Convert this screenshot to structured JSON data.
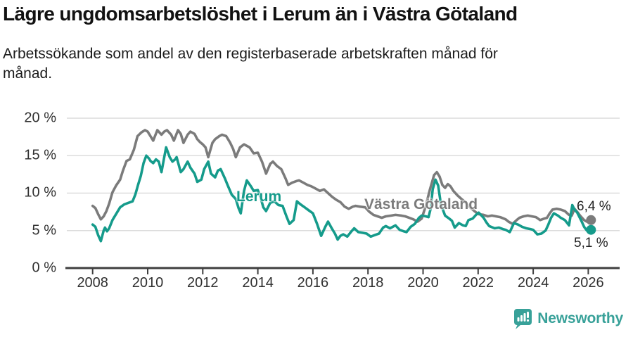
{
  "colors": {
    "teal": "#159b8b",
    "gray": "#7b7b7b",
    "axis": "#3f3f3f",
    "grid": "#dcdcdc",
    "logo": "#38a199"
  },
  "footer": {
    "brand": "Newsworthy"
  },
  "chart_data": {
    "type": "line",
    "title": "Lägre ungdomsarbetslöshet i Lerum än i Västra Götaland",
    "subtitle_lines": [
      "Arbetssökande som andel av den registerbaserade arbetskraften månad för",
      "månad."
    ],
    "unit": "%",
    "legend_position": "inline-labels-on-lines",
    "x_axis": {
      "tick_labels": [
        "2008",
        "2010",
        "2012",
        "2014",
        "2016",
        "2018",
        "2020",
        "2022",
        "2024",
        "2026"
      ],
      "tick_years": [
        2008,
        2010,
        2012,
        2014,
        2016,
        2018,
        2020,
        2022,
        2024,
        2026
      ],
      "range": [
        2007.8,
        2027.1
      ],
      "grid": false
    },
    "y_axis": {
      "tick_labels": [
        "0 %",
        "5 %",
        "10 %",
        "15 %",
        "20 %"
      ],
      "tick_values": [
        0,
        5,
        10,
        15,
        20
      ],
      "range": [
        0,
        20
      ],
      "grid": true
    },
    "series": [
      {
        "name": "Västra Götaland",
        "color_key": "gray",
        "end_label": "6,4 %",
        "end_value": 6.4,
        "points": [
          [
            2008.0,
            8.3
          ],
          [
            2008.1,
            8.0
          ],
          [
            2008.2,
            7.2
          ],
          [
            2008.3,
            6.5
          ],
          [
            2008.4,
            6.9
          ],
          [
            2008.5,
            7.6
          ],
          [
            2008.6,
            8.6
          ],
          [
            2008.72,
            10.1
          ],
          [
            2008.85,
            11.0
          ],
          [
            2009.0,
            11.8
          ],
          [
            2009.1,
            13.0
          ],
          [
            2009.23,
            14.3
          ],
          [
            2009.35,
            14.5
          ],
          [
            2009.5,
            15.8
          ],
          [
            2009.63,
            17.6
          ],
          [
            2009.77,
            18.1
          ],
          [
            2009.9,
            18.4
          ],
          [
            2010.0,
            18.2
          ],
          [
            2010.1,
            17.6
          ],
          [
            2010.2,
            17.0
          ],
          [
            2010.35,
            18.4
          ],
          [
            2010.5,
            17.8
          ],
          [
            2010.6,
            18.2
          ],
          [
            2010.7,
            18.4
          ],
          [
            2010.85,
            17.8
          ],
          [
            2010.95,
            17.0
          ],
          [
            2011.1,
            18.4
          ],
          [
            2011.2,
            17.9
          ],
          [
            2011.3,
            16.7
          ],
          [
            2011.45,
            17.8
          ],
          [
            2011.55,
            18.2
          ],
          [
            2011.7,
            17.9
          ],
          [
            2011.8,
            17.2
          ],
          [
            2011.9,
            16.8
          ],
          [
            2012.0,
            16.5
          ],
          [
            2012.1,
            16.1
          ],
          [
            2012.2,
            14.8
          ],
          [
            2012.35,
            16.7
          ],
          [
            2012.45,
            17.2
          ],
          [
            2012.6,
            17.6
          ],
          [
            2012.7,
            17.8
          ],
          [
            2012.85,
            17.6
          ],
          [
            2013.0,
            16.7
          ],
          [
            2013.1,
            15.9
          ],
          [
            2013.2,
            14.8
          ],
          [
            2013.35,
            16.1
          ],
          [
            2013.5,
            16.5
          ],
          [
            2013.7,
            16.1
          ],
          [
            2013.85,
            15.3
          ],
          [
            2014.0,
            15.4
          ],
          [
            2014.15,
            14.2
          ],
          [
            2014.3,
            12.6
          ],
          [
            2014.45,
            13.9
          ],
          [
            2014.55,
            14.2
          ],
          [
            2014.7,
            13.6
          ],
          [
            2014.85,
            13.2
          ],
          [
            2015.0,
            12.0
          ],
          [
            2015.1,
            11.1
          ],
          [
            2015.25,
            11.4
          ],
          [
            2015.4,
            11.6
          ],
          [
            2015.5,
            11.7
          ],
          [
            2015.65,
            11.4
          ],
          [
            2015.8,
            11.1
          ],
          [
            2015.95,
            10.9
          ],
          [
            2016.1,
            10.6
          ],
          [
            2016.25,
            10.3
          ],
          [
            2016.4,
            10.5
          ],
          [
            2016.55,
            10.0
          ],
          [
            2016.7,
            9.5
          ],
          [
            2016.85,
            9.1
          ],
          [
            2017.0,
            8.8
          ],
          [
            2017.15,
            8.2
          ],
          [
            2017.3,
            7.9
          ],
          [
            2017.45,
            8.2
          ],
          [
            2017.55,
            8.3
          ],
          [
            2017.7,
            8.2
          ],
          [
            2017.9,
            8.1
          ],
          [
            2018.05,
            7.5
          ],
          [
            2018.2,
            7.1
          ],
          [
            2018.35,
            6.9
          ],
          [
            2018.5,
            6.7
          ],
          [
            2018.65,
            6.9
          ],
          [
            2018.85,
            7.0
          ],
          [
            2019.0,
            7.1
          ],
          [
            2019.2,
            7.0
          ],
          [
            2019.35,
            6.9
          ],
          [
            2019.5,
            6.7
          ],
          [
            2019.65,
            6.5
          ],
          [
            2019.8,
            6.2
          ],
          [
            2019.95,
            6.6
          ],
          [
            2020.1,
            8.3
          ],
          [
            2020.25,
            10.5
          ],
          [
            2020.4,
            12.4
          ],
          [
            2020.5,
            12.8
          ],
          [
            2020.6,
            12.2
          ],
          [
            2020.7,
            11.1
          ],
          [
            2020.8,
            10.7
          ],
          [
            2020.9,
            11.2
          ],
          [
            2021.0,
            10.9
          ],
          [
            2021.1,
            10.3
          ],
          [
            2021.25,
            9.7
          ],
          [
            2021.4,
            9.2
          ],
          [
            2021.5,
            8.9
          ],
          [
            2021.65,
            8.3
          ],
          [
            2021.8,
            7.8
          ],
          [
            2022.0,
            7.2
          ],
          [
            2022.2,
            7.1
          ],
          [
            2022.35,
            6.9
          ],
          [
            2022.5,
            7.0
          ],
          [
            2022.65,
            6.9
          ],
          [
            2022.8,
            6.8
          ],
          [
            2023.0,
            6.5
          ],
          [
            2023.1,
            6.2
          ],
          [
            2023.25,
            5.9
          ],
          [
            2023.4,
            6.4
          ],
          [
            2023.5,
            6.7
          ],
          [
            2023.65,
            6.9
          ],
          [
            2023.8,
            7.0
          ],
          [
            2023.95,
            6.9
          ],
          [
            2024.1,
            6.8
          ],
          [
            2024.25,
            6.4
          ],
          [
            2024.4,
            6.6
          ],
          [
            2024.5,
            6.7
          ],
          [
            2024.6,
            7.3
          ],
          [
            2024.7,
            7.8
          ],
          [
            2024.85,
            7.9
          ],
          [
            2025.0,
            7.8
          ],
          [
            2025.15,
            7.6
          ],
          [
            2025.3,
            7.1
          ],
          [
            2025.4,
            7.0
          ],
          [
            2025.5,
            7.9
          ],
          [
            2025.6,
            7.5
          ],
          [
            2025.7,
            7.0
          ],
          [
            2025.85,
            6.4
          ],
          [
            2025.95,
            6.2
          ],
          [
            2026.1,
            6.4
          ]
        ]
      },
      {
        "name": "Lerum",
        "color_key": "teal",
        "end_label": "5,1 %",
        "end_value": 5.1,
        "points": [
          [
            2008.0,
            5.8
          ],
          [
            2008.1,
            5.5
          ],
          [
            2008.2,
            4.4
          ],
          [
            2008.3,
            3.6
          ],
          [
            2008.4,
            5.0
          ],
          [
            2008.45,
            5.4
          ],
          [
            2008.52,
            4.9
          ],
          [
            2008.6,
            5.3
          ],
          [
            2008.72,
            6.4
          ],
          [
            2008.85,
            7.2
          ],
          [
            2009.0,
            8.1
          ],
          [
            2009.15,
            8.5
          ],
          [
            2009.3,
            8.7
          ],
          [
            2009.45,
            8.9
          ],
          [
            2009.55,
            9.8
          ],
          [
            2009.65,
            11.1
          ],
          [
            2009.75,
            12.3
          ],
          [
            2009.85,
            14.0
          ],
          [
            2009.95,
            15.0
          ],
          [
            2010.05,
            14.6
          ],
          [
            2010.1,
            14.3
          ],
          [
            2010.2,
            14.0
          ],
          [
            2010.3,
            14.5
          ],
          [
            2010.4,
            14.2
          ],
          [
            2010.5,
            12.8
          ],
          [
            2010.6,
            14.8
          ],
          [
            2010.67,
            16.1
          ],
          [
            2010.8,
            14.8
          ],
          [
            2010.9,
            14.2
          ],
          [
            2011.0,
            14.5
          ],
          [
            2011.05,
            14.8
          ],
          [
            2011.2,
            12.8
          ],
          [
            2011.3,
            13.2
          ],
          [
            2011.45,
            14.2
          ],
          [
            2011.55,
            13.4
          ],
          [
            2011.7,
            12.6
          ],
          [
            2011.8,
            11.5
          ],
          [
            2011.95,
            11.8
          ],
          [
            2012.05,
            13.2
          ],
          [
            2012.2,
            14.2
          ],
          [
            2012.3,
            12.6
          ],
          [
            2012.45,
            12.1
          ],
          [
            2012.55,
            13.0
          ],
          [
            2012.65,
            13.2
          ],
          [
            2012.8,
            12.0
          ],
          [
            2012.9,
            11.1
          ],
          [
            2013.05,
            9.8
          ],
          [
            2013.2,
            9.2
          ],
          [
            2013.3,
            8.0
          ],
          [
            2013.38,
            7.3
          ],
          [
            2013.5,
            10.3
          ],
          [
            2013.6,
            11.7
          ],
          [
            2013.75,
            10.9
          ],
          [
            2013.85,
            10.3
          ],
          [
            2014.0,
            10.4
          ],
          [
            2014.1,
            9.4
          ],
          [
            2014.2,
            8.1
          ],
          [
            2014.3,
            7.6
          ],
          [
            2014.45,
            8.7
          ],
          [
            2014.6,
            8.9
          ],
          [
            2014.75,
            8.4
          ],
          [
            2014.9,
            8.3
          ],
          [
            2015.05,
            6.8
          ],
          [
            2015.15,
            5.9
          ],
          [
            2015.3,
            6.4
          ],
          [
            2015.42,
            8.9
          ],
          [
            2015.55,
            8.5
          ],
          [
            2015.7,
            8.1
          ],
          [
            2015.85,
            7.7
          ],
          [
            2016.0,
            7.3
          ],
          [
            2016.15,
            5.9
          ],
          [
            2016.3,
            4.3
          ],
          [
            2016.45,
            5.5
          ],
          [
            2016.55,
            6.2
          ],
          [
            2016.7,
            5.2
          ],
          [
            2016.8,
            4.6
          ],
          [
            2016.9,
            3.8
          ],
          [
            2017.0,
            4.3
          ],
          [
            2017.1,
            4.5
          ],
          [
            2017.25,
            4.2
          ],
          [
            2017.4,
            4.9
          ],
          [
            2017.5,
            5.3
          ],
          [
            2017.65,
            4.8
          ],
          [
            2017.8,
            4.7
          ],
          [
            2017.95,
            4.6
          ],
          [
            2018.1,
            4.2
          ],
          [
            2018.25,
            4.4
          ],
          [
            2018.4,
            4.6
          ],
          [
            2018.55,
            5.4
          ],
          [
            2018.65,
            5.6
          ],
          [
            2018.8,
            5.3
          ],
          [
            2019.0,
            5.7
          ],
          [
            2019.15,
            5.1
          ],
          [
            2019.3,
            4.9
          ],
          [
            2019.4,
            4.8
          ],
          [
            2019.55,
            5.5
          ],
          [
            2019.7,
            5.9
          ],
          [
            2019.85,
            6.7
          ],
          [
            2019.95,
            7.0
          ],
          [
            2020.1,
            6.9
          ],
          [
            2020.2,
            6.8
          ],
          [
            2020.28,
            8.0
          ],
          [
            2020.35,
            10.5
          ],
          [
            2020.45,
            11.8
          ],
          [
            2020.55,
            11.0
          ],
          [
            2020.65,
            8.5
          ],
          [
            2020.8,
            7.0
          ],
          [
            2020.95,
            6.6
          ],
          [
            2021.05,
            6.3
          ],
          [
            2021.15,
            5.4
          ],
          [
            2021.3,
            6.0
          ],
          [
            2021.45,
            5.7
          ],
          [
            2021.55,
            5.6
          ],
          [
            2021.65,
            6.4
          ],
          [
            2021.8,
            6.6
          ],
          [
            2021.95,
            7.2
          ],
          [
            2022.02,
            7.4
          ],
          [
            2022.2,
            6.7
          ],
          [
            2022.3,
            6.1
          ],
          [
            2022.4,
            5.6
          ],
          [
            2022.6,
            5.3
          ],
          [
            2022.75,
            5.4
          ],
          [
            2022.9,
            5.2
          ],
          [
            2023.0,
            5.1
          ],
          [
            2023.15,
            4.8
          ],
          [
            2023.3,
            6.0
          ],
          [
            2023.45,
            5.8
          ],
          [
            2023.6,
            5.5
          ],
          [
            2023.75,
            5.3
          ],
          [
            2023.9,
            5.2
          ],
          [
            2024.0,
            5.1
          ],
          [
            2024.15,
            4.5
          ],
          [
            2024.3,
            4.6
          ],
          [
            2024.45,
            5.0
          ],
          [
            2024.55,
            5.8
          ],
          [
            2024.65,
            6.7
          ],
          [
            2024.75,
            7.3
          ],
          [
            2024.9,
            7.0
          ],
          [
            2025.0,
            6.7
          ],
          [
            2025.15,
            6.4
          ],
          [
            2025.3,
            5.7
          ],
          [
            2025.42,
            8.4
          ],
          [
            2025.5,
            7.8
          ],
          [
            2025.6,
            7.4
          ],
          [
            2025.75,
            6.3
          ],
          [
            2025.85,
            5.5
          ],
          [
            2025.95,
            5.0
          ],
          [
            2026.1,
            5.1
          ]
        ]
      }
    ]
  }
}
